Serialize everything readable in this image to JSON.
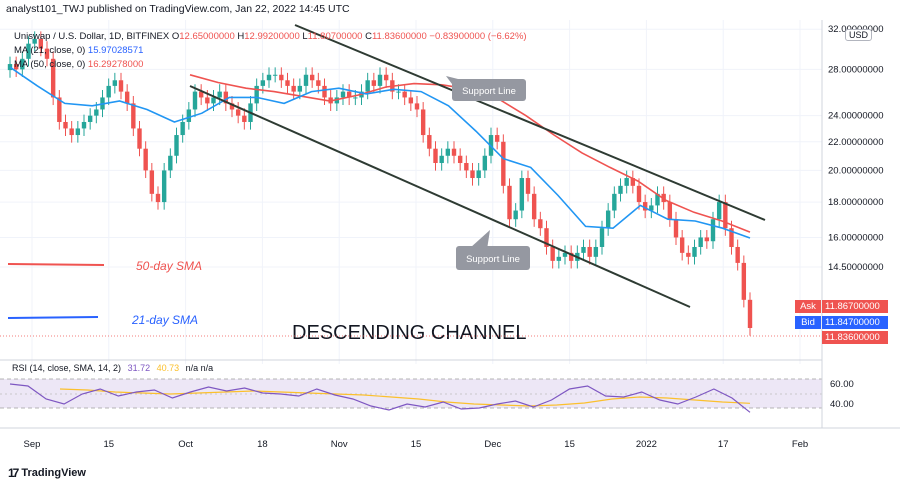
{
  "header": {
    "published": "analyst101_TWJ published on TradingView.com, Jan 22, 2022 14:45 UTC"
  },
  "legend": {
    "symbol": "Uniswap / U.S. Dollar, 1D, BITFINEX",
    "o_label": "O",
    "o_value": "12.65000000",
    "h_label": "H",
    "h_value": "12.99200000",
    "l_label": "L",
    "l_value": "11.80700000",
    "c_label": "C",
    "c_value": "11.83600000",
    "change": "−0.83900000 (−6.62%)",
    "ma1_label": "MA (21, close, 0)",
    "ma1_value": "15.97028571",
    "ma2_label": "MA (50, close, 0)",
    "ma2_value": "16.29278000"
  },
  "annotations": {
    "support_line_top": "Support Line",
    "support_line_bottom": "Support Line",
    "sma50": "50-day SMA",
    "sma21": "21-day SMA",
    "pattern": "DESCENDING CHANNEL"
  },
  "price_axis": {
    "currency": "USD",
    "ask_label": "Ask",
    "ask_value": "11.86700000",
    "bid_label": "Bid",
    "bid_value": "11.84700000",
    "last_value": "11.83600000"
  },
  "rsi_legend": {
    "label": "RSI (14, close, SMA, 14, 2)",
    "value": "31.72",
    "sma_value": "40.73",
    "bands": "n/a n/a"
  },
  "footer": {
    "brand": "TradingView"
  },
  "colors": {
    "up": "#26a69a",
    "down": "#ef5350",
    "ma21": "#2196f3",
    "ma50": "#ef5350",
    "rsi": "#7e57c2",
    "rsi_sma": "#fbc02d",
    "channel": "#2e3b33",
    "ask": "#ef5350",
    "bid": "#2962ff"
  },
  "chart_data": [
    {
      "type": "line",
      "title": "Uniswap / U.S. Dollar, 1D, BITFINEX",
      "x_ticks": [
        "Sep",
        "15",
        "Oct",
        "18",
        "Nov",
        "15",
        "Dec",
        "15",
        "2022",
        "17",
        "Feb"
      ],
      "y_ticks": [
        "32.00000000",
        "28.00000000",
        "24.00000000",
        "22.00000000",
        "20.00000000",
        "18.00000000",
        "16.00000000",
        "14.50000000"
      ],
      "ohlc_close_series": [
        28.5,
        28.0,
        29.0,
        30.5,
        31.0,
        30.0,
        29.0,
        25.5,
        23.5,
        23.0,
        22.5,
        23.0,
        23.5,
        24.0,
        24.5,
        25.5,
        26.5,
        27.0,
        26.0,
        25.0,
        23.0,
        21.5,
        20.0,
        18.5,
        18.0,
        20.0,
        21.0,
        22.5,
        23.5,
        24.5,
        26.0,
        25.5,
        25.0,
        25.5,
        26.0,
        25.0,
        24.5,
        24.0,
        23.5,
        25.0,
        26.5,
        27.0,
        27.5,
        27.5,
        27.0,
        26.5,
        26.0,
        26.5,
        27.5,
        27.0,
        26.5,
        25.5,
        25.0,
        25.5,
        26.0,
        25.5,
        25.5,
        26.0,
        27.0,
        26.5,
        27.5,
        27.0,
        26.0,
        26.0,
        25.5,
        25.0,
        24.5,
        22.5,
        21.5,
        20.5,
        21.0,
        21.5,
        21.0,
        20.5,
        20.0,
        19.5,
        20.0,
        21.0,
        22.5,
        22.0,
        19.0,
        17.0,
        17.5,
        19.5,
        18.5,
        17.0,
        16.5,
        15.5,
        14.8,
        15.0,
        15.2,
        14.8,
        15.2,
        15.5,
        15.0,
        15.5,
        16.5,
        17.5,
        18.5,
        19.0,
        19.5,
        19.0,
        18.0,
        17.5,
        17.8,
        18.5,
        18.0,
        17.0,
        16.0,
        15.2,
        15.0,
        15.5,
        16.0,
        15.8,
        17.0,
        18.0,
        16.5,
        15.5,
        14.7,
        13.0,
        11.836
      ],
      "ma21": [
        28.2,
        26.5,
        25.0,
        24.8,
        25.2,
        24.5,
        23.5,
        24.2,
        25.5,
        25.5,
        25.0,
        26.0,
        26.3,
        25.8,
        26.2,
        26.0,
        24.8,
        22.8,
        20.8,
        20.2,
        18.4,
        16.6,
        16.5,
        17.8,
        17.0,
        16.9,
        16.5,
        15.97
      ],
      "ma50": [
        27.5,
        26.8,
        26.3,
        26.0,
        25.6,
        25.2,
        25.7,
        26.4,
        26.7,
        26.6,
        26.2,
        25.4,
        24.0,
        22.5,
        21.2,
        20.2,
        19.3,
        18.1,
        17.4,
        16.9,
        16.29
      ],
      "ylim": [
        11.0,
        33.0
      ],
      "scale": "log"
    },
    {
      "type": "line",
      "title": "RSI (14, close, SMA, 14, 2)",
      "rsi_values": [
        60,
        58,
        45,
        40,
        50,
        55,
        48,
        52,
        54,
        46,
        52,
        57,
        53,
        56,
        51,
        50,
        48,
        55,
        49,
        45,
        38,
        34,
        40,
        37,
        42,
        35,
        36,
        40,
        43,
        37,
        44,
        55,
        58,
        48,
        47,
        52,
        44,
        40,
        47,
        55,
        46,
        31.72
      ],
      "rsi_sma": [
        55,
        54,
        52,
        51,
        50,
        51,
        52,
        53,
        52,
        51,
        50,
        49,
        47,
        45,
        42,
        40,
        39,
        38,
        39,
        41,
        45,
        47,
        46,
        44,
        42,
        40.73
      ],
      "y_ticks": [
        "60.00",
        "40.00"
      ],
      "ylim": [
        20,
        80
      ]
    }
  ]
}
